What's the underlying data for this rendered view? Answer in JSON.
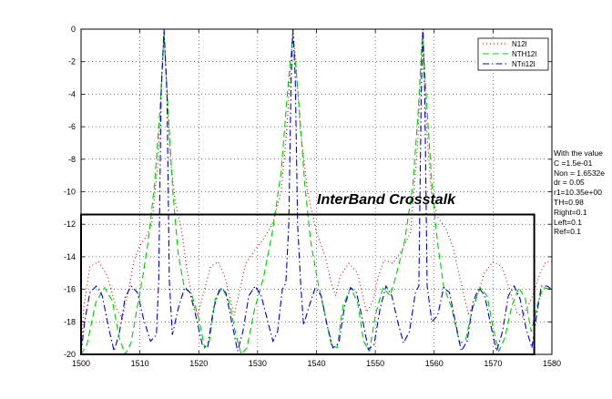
{
  "chart_data": {
    "type": "line",
    "title": "",
    "xlabel": "",
    "ylabel": "",
    "xlim": [
      1500,
      1580
    ],
    "ylim": [
      -20,
      0
    ],
    "x_ticks": [
      "1500",
      "1510",
      "1520",
      "1530",
      "1540",
      "1550",
      "1560",
      "1570",
      "1580"
    ],
    "y_ticks": [
      "0",
      "-2",
      "-4",
      "-6",
      "-8",
      "-10",
      "-12",
      "-14",
      "-16",
      "-18",
      "-20"
    ],
    "grid": true,
    "legend_position": "top-right",
    "series": [
      {
        "name": "N12l",
        "color": "#d00000",
        "style": "dotted",
        "points": [
          [
            1500,
            -20
          ],
          [
            1500.5,
            -17
          ],
          [
            1501.5,
            -14.6
          ],
          [
            1503,
            -14.3
          ],
          [
            1504.5,
            -15.2
          ],
          [
            1506,
            -17.2
          ],
          [
            1507,
            -17.8
          ],
          [
            1508,
            -16.2
          ],
          [
            1509,
            -14.2
          ],
          [
            1510,
            -13.3
          ],
          [
            1511,
            -12.8
          ],
          [
            1512,
            -12.0
          ],
          [
            1513,
            -8.5
          ],
          [
            1513.6,
            -4
          ],
          [
            1514.1,
            0
          ],
          [
            1514.6,
            -4
          ],
          [
            1515.2,
            -8
          ],
          [
            1516,
            -10.6
          ],
          [
            1517,
            -12.2
          ],
          [
            1518,
            -14.8
          ],
          [
            1519,
            -16.8
          ],
          [
            1519.8,
            -17.6
          ],
          [
            1521,
            -16
          ],
          [
            1522,
            -14.6
          ],
          [
            1523.3,
            -14.3
          ],
          [
            1524.5,
            -15.3
          ],
          [
            1526,
            -17.6
          ],
          [
            1527,
            -16
          ],
          [
            1528,
            -14.4
          ],
          [
            1529.5,
            -13.6
          ],
          [
            1531,
            -12.9
          ],
          [
            1532.5,
            -12
          ],
          [
            1534,
            -10
          ],
          [
            1535,
            -6
          ],
          [
            1535.6,
            -2
          ],
          [
            1536,
            0
          ],
          [
            1536.5,
            -2
          ],
          [
            1537.2,
            -6
          ],
          [
            1538.5,
            -10
          ],
          [
            1540,
            -12.5
          ],
          [
            1541.5,
            -14
          ],
          [
            1542.5,
            -15.6
          ],
          [
            1543.3,
            -16.4
          ],
          [
            1544,
            -15.2
          ],
          [
            1545.5,
            -14.4
          ],
          [
            1547,
            -15
          ],
          [
            1548.5,
            -17.4
          ],
          [
            1549.5,
            -16.8
          ],
          [
            1550.5,
            -15.2
          ],
          [
            1551.5,
            -14.2
          ],
          [
            1553,
            -14.4
          ],
          [
            1554.5,
            -13.6
          ],
          [
            1556,
            -12.5
          ],
          [
            1557.2,
            -7
          ],
          [
            1558,
            0
          ],
          [
            1558.7,
            -6
          ],
          [
            1559.5,
            -10
          ],
          [
            1560.5,
            -11.5
          ],
          [
            1562,
            -12.3
          ],
          [
            1563.2,
            -13.4
          ],
          [
            1564.5,
            -15.5
          ],
          [
            1565.8,
            -17.5
          ],
          [
            1567,
            -16.8
          ],
          [
            1568.5,
            -15
          ],
          [
            1570,
            -14.3
          ],
          [
            1571.5,
            -14.6
          ],
          [
            1573,
            -16.2
          ],
          [
            1574,
            -17.4
          ],
          [
            1575,
            -17.7
          ],
          [
            1576.5,
            -16.6
          ],
          [
            1578,
            -15
          ],
          [
            1579,
            -14.3
          ],
          [
            1580,
            -14.3
          ]
        ]
      },
      {
        "name": "NTH12l",
        "color": "#00cc00",
        "style": "dashed",
        "points": [
          [
            1500,
            -20
          ],
          [
            1501,
            -19.4
          ],
          [
            1502.5,
            -16.8
          ],
          [
            1504,
            -15.9
          ],
          [
            1505.3,
            -16.7
          ],
          [
            1506.5,
            -19
          ],
          [
            1507.5,
            -20
          ],
          [
            1508.5,
            -19.3
          ],
          [
            1509.5,
            -17.2
          ],
          [
            1510.5,
            -15.2
          ],
          [
            1511.5,
            -12.8
          ],
          [
            1512.5,
            -9.5
          ],
          [
            1513.4,
            -5
          ],
          [
            1514.1,
            -0.3
          ],
          [
            1514.8,
            -5
          ],
          [
            1515.6,
            -10
          ],
          [
            1516.5,
            -13.8
          ],
          [
            1517.5,
            -15.8
          ],
          [
            1518.8,
            -16.3
          ],
          [
            1520,
            -17.8
          ],
          [
            1521,
            -19.6
          ],
          [
            1521.8,
            -19.2
          ],
          [
            1522.8,
            -16.6
          ],
          [
            1524,
            -15.9
          ],
          [
            1525.2,
            -16.8
          ],
          [
            1526.3,
            -18.8
          ],
          [
            1527.2,
            -20
          ],
          [
            1528.2,
            -19.6
          ],
          [
            1529.5,
            -17.2
          ],
          [
            1531,
            -15.3
          ],
          [
            1532.5,
            -12.5
          ],
          [
            1534,
            -8.8
          ],
          [
            1535,
            -4.2
          ],
          [
            1536,
            -0.3
          ],
          [
            1537,
            -4.5
          ],
          [
            1538,
            -9.5
          ],
          [
            1539,
            -13
          ],
          [
            1540.2,
            -15.5
          ],
          [
            1541.3,
            -17.3
          ],
          [
            1542.5,
            -19.4
          ],
          [
            1543.5,
            -19.6
          ],
          [
            1544.5,
            -17
          ],
          [
            1545.8,
            -15.9
          ],
          [
            1547,
            -16.8
          ],
          [
            1548,
            -19.2
          ],
          [
            1549,
            -19.8
          ],
          [
            1550,
            -17.6
          ],
          [
            1551.3,
            -15.9
          ],
          [
            1552.5,
            -16.4
          ],
          [
            1553.5,
            -15.2
          ],
          [
            1555,
            -13
          ],
          [
            1556.4,
            -9.5
          ],
          [
            1557.3,
            -5
          ],
          [
            1558,
            -0.3
          ],
          [
            1558.8,
            -5
          ],
          [
            1559.7,
            -10
          ],
          [
            1560.6,
            -13.2
          ],
          [
            1561.6,
            -15.8
          ],
          [
            1563,
            -17.2
          ],
          [
            1564.3,
            -19.3
          ],
          [
            1565.3,
            -19.2
          ],
          [
            1566.5,
            -17.2
          ],
          [
            1567.8,
            -15.9
          ],
          [
            1569,
            -16.4
          ],
          [
            1570,
            -18.4
          ],
          [
            1571,
            -19.8
          ],
          [
            1572,
            -19
          ],
          [
            1573.2,
            -17
          ],
          [
            1574.4,
            -15.9
          ],
          [
            1575.5,
            -16.6
          ],
          [
            1576.5,
            -18.6
          ],
          [
            1577.5,
            -17
          ],
          [
            1578.5,
            -15.9
          ],
          [
            1580,
            -16
          ]
        ]
      },
      {
        "name": "NTri12l",
        "color": "#0000cc",
        "style": "dashdot",
        "points": [
          [
            1500,
            -20
          ],
          [
            1500.6,
            -18
          ],
          [
            1501.5,
            -16.2
          ],
          [
            1502.6,
            -15.8
          ],
          [
            1503.6,
            -16.4
          ],
          [
            1504.6,
            -18.2
          ],
          [
            1505.6,
            -19.8
          ],
          [
            1506.5,
            -18.7
          ],
          [
            1507.5,
            -16.5
          ],
          [
            1508.5,
            -15.8
          ],
          [
            1509.6,
            -16.2
          ],
          [
            1510.6,
            -17.8
          ],
          [
            1511.8,
            -19.2
          ],
          [
            1512.8,
            -18.8
          ],
          [
            1513.2,
            -15.4
          ],
          [
            1513.6,
            -4
          ],
          [
            1514.1,
            0
          ],
          [
            1514.6,
            -4
          ],
          [
            1515,
            -15.4
          ],
          [
            1515.5,
            -18.8
          ],
          [
            1516.5,
            -17.2
          ],
          [
            1517.6,
            -15.9
          ],
          [
            1518.5,
            -16.2
          ],
          [
            1519.6,
            -17.8
          ],
          [
            1520.6,
            -19.4
          ],
          [
            1521.5,
            -19.6
          ],
          [
            1522.5,
            -17.2
          ],
          [
            1523.6,
            -15.9
          ],
          [
            1524.6,
            -16.2
          ],
          [
            1525.6,
            -18
          ],
          [
            1526.6,
            -19.8
          ],
          [
            1527.5,
            -18.6
          ],
          [
            1528.5,
            -16.4
          ],
          [
            1529.6,
            -15.8
          ],
          [
            1530.6,
            -16.4
          ],
          [
            1531.6,
            -17.8
          ],
          [
            1532.6,
            -19.2
          ],
          [
            1533.4,
            -18.6
          ],
          [
            1534.2,
            -16
          ],
          [
            1534.8,
            -15.6
          ],
          [
            1535.3,
            -12
          ],
          [
            1535.7,
            -3
          ],
          [
            1536,
            0
          ],
          [
            1536.4,
            -3
          ],
          [
            1536.8,
            -12
          ],
          [
            1537.3,
            -15.6
          ],
          [
            1537.8,
            -18.2
          ],
          [
            1538.8,
            -17
          ],
          [
            1539.8,
            -15.9
          ],
          [
            1540.8,
            -16.4
          ],
          [
            1541.8,
            -18.2
          ],
          [
            1542.8,
            -19.6
          ],
          [
            1543.8,
            -19.3
          ],
          [
            1544.8,
            -17
          ],
          [
            1545.8,
            -15.9
          ],
          [
            1546.8,
            -16.2
          ],
          [
            1547.8,
            -17.8
          ],
          [
            1548.8,
            -19.7
          ],
          [
            1549.8,
            -19.4
          ],
          [
            1550.8,
            -17.2
          ],
          [
            1551.8,
            -15.8
          ],
          [
            1552.8,
            -16.4
          ],
          [
            1553.8,
            -18
          ],
          [
            1554.8,
            -19.3
          ],
          [
            1555.8,
            -18.6
          ],
          [
            1556.8,
            -16.2
          ],
          [
            1557.4,
            -15.8
          ],
          [
            1557.8,
            -4
          ],
          [
            1558.1,
            0
          ],
          [
            1558.4,
            -4
          ],
          [
            1558.8,
            -15.8
          ],
          [
            1559.6,
            -18
          ],
          [
            1560.6,
            -17.6
          ],
          [
            1561.6,
            -15.9
          ],
          [
            1562.6,
            -16.2
          ],
          [
            1563.6,
            -18
          ],
          [
            1564.6,
            -19.8
          ],
          [
            1565.6,
            -19.2
          ],
          [
            1566.6,
            -16.8
          ],
          [
            1567.6,
            -15.9
          ],
          [
            1568.6,
            -16.4
          ],
          [
            1569.6,
            -18.2
          ],
          [
            1570.6,
            -19.8
          ],
          [
            1571.6,
            -18.6
          ],
          [
            1572.6,
            -16.4
          ],
          [
            1573.6,
            -15.8
          ],
          [
            1574.6,
            -16.6
          ],
          [
            1575.6,
            -18.4
          ],
          [
            1576.6,
            -19.6
          ],
          [
            1577.4,
            -17.6
          ],
          [
            1578.2,
            -15.8
          ],
          [
            1579.2,
            -15.8
          ],
          [
            1580,
            -16
          ]
        ]
      }
    ],
    "annotation": "InterBand Crosstalk",
    "side_note": [
      "With the value",
      "C =1.5e-01",
      "Non = 1.6532e",
      "dr = 0.05",
      "r1=10.35e+00",
      "TH=0.98",
      "Right=0.1",
      "Left=0.1",
      "Ref=0.1"
    ],
    "highlight_box": {
      "x_range": [
        1500,
        1577
      ],
      "y_range": [
        -20,
        -11.4
      ],
      "color": "#000000"
    }
  }
}
